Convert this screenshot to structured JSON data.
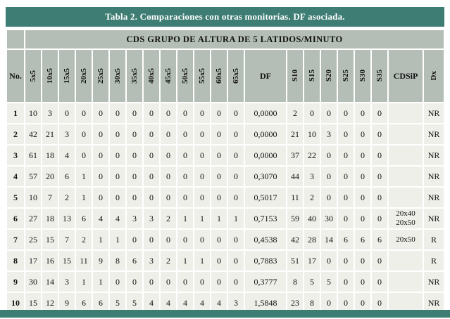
{
  "title": "Tabla 2. Comparaciones con otras monitorías. DF asociada.",
  "table": {
    "group_header": "CDS GRUPO DE ALTURA DE 5 LATIDOS/MINUTO",
    "no_label": "No.",
    "columns": [
      {
        "label": "5x5",
        "rotated": true
      },
      {
        "label": "10x5",
        "rotated": true
      },
      {
        "label": "15x5",
        "rotated": true
      },
      {
        "label": "20x5",
        "rotated": true
      },
      {
        "label": "25x5",
        "rotated": true
      },
      {
        "label": "30x5",
        "rotated": true
      },
      {
        "label": "35x5",
        "rotated": true
      },
      {
        "label": "40x5",
        "rotated": true
      },
      {
        "label": "45x5",
        "rotated": true
      },
      {
        "label": "50x5",
        "rotated": true
      },
      {
        "label": "55x5",
        "rotated": true
      },
      {
        "label": "60x5",
        "rotated": true
      },
      {
        "label": "65x5",
        "rotated": true
      },
      {
        "label": "DF",
        "rotated": false
      },
      {
        "label": "S10",
        "rotated": true
      },
      {
        "label": "S15",
        "rotated": true
      },
      {
        "label": "S20",
        "rotated": true
      },
      {
        "label": "S25",
        "rotated": true
      },
      {
        "label": "S30",
        "rotated": true
      },
      {
        "label": "S35",
        "rotated": true
      },
      {
        "label": "CDSiP",
        "rotated": false
      },
      {
        "label": "Dx",
        "rotated": true
      }
    ],
    "rows": [
      {
        "no": "1",
        "cells": [
          "10",
          "3",
          "0",
          "0",
          "0",
          "0",
          "0",
          "0",
          "0",
          "0",
          "0",
          "0",
          "0",
          "0,0000",
          "2",
          "0",
          "0",
          "0",
          "0",
          "0",
          "",
          "NR"
        ]
      },
      {
        "no": "2",
        "cells": [
          "42",
          "21",
          "3",
          "0",
          "0",
          "0",
          "0",
          "0",
          "0",
          "0",
          "0",
          "0",
          "0",
          "0,0000",
          "21",
          "10",
          "3",
          "0",
          "0",
          "0",
          "",
          "NR"
        ]
      },
      {
        "no": "3",
        "cells": [
          "61",
          "18",
          "4",
          "0",
          "0",
          "0",
          "0",
          "0",
          "0",
          "0",
          "0",
          "0",
          "0",
          "0,0000",
          "37",
          "22",
          "0",
          "0",
          "0",
          "0",
          "",
          "NR"
        ]
      },
      {
        "no": "4",
        "cells": [
          "57",
          "20",
          "6",
          "1",
          "0",
          "0",
          "0",
          "0",
          "0",
          "0",
          "0",
          "0",
          "0",
          "0,3070",
          "44",
          "3",
          "0",
          "0",
          "0",
          "0",
          "",
          "NR"
        ]
      },
      {
        "no": "5",
        "cells": [
          "10",
          "7",
          "2",
          "1",
          "0",
          "0",
          "0",
          "0",
          "0",
          "0",
          "0",
          "0",
          "0",
          "0,5017",
          "11",
          "2",
          "0",
          "0",
          "0",
          "0",
          "",
          "NR"
        ]
      },
      {
        "no": "6",
        "cells": [
          "27",
          "18",
          "13",
          "6",
          "4",
          "4",
          "3",
          "3",
          "2",
          "1",
          "1",
          "1",
          "1",
          "0,7153",
          "59",
          "40",
          "30",
          "0",
          "0",
          "0",
          "20x40 20x50",
          "NR"
        ]
      },
      {
        "no": "7",
        "cells": [
          "25",
          "15",
          "7",
          "2",
          "1",
          "1",
          "0",
          "0",
          "0",
          "0",
          "0",
          "0",
          "0",
          "0,4538",
          "42",
          "28",
          "14",
          "6",
          "6",
          "6",
          "20x50",
          "R"
        ]
      },
      {
        "no": "8",
        "cells": [
          "17",
          "16",
          "15",
          "11",
          "9",
          "8",
          "6",
          "3",
          "2",
          "1",
          "1",
          "0",
          "0",
          "0,7883",
          "51",
          "17",
          "0",
          "0",
          "0",
          "0",
          "",
          "R"
        ]
      },
      {
        "no": "9",
        "cells": [
          "30",
          "14",
          "3",
          "1",
          "1",
          "0",
          "0",
          "0",
          "0",
          "0",
          "0",
          "0",
          "0",
          "0,3777",
          "8",
          "5",
          "5",
          "0",
          "0",
          "0",
          "",
          "NR"
        ]
      },
      {
        "no": "10",
        "cells": [
          "15",
          "12",
          "9",
          "6",
          "6",
          "5",
          "5",
          "4",
          "4",
          "4",
          "4",
          "4",
          "3",
          "1,5848",
          "23",
          "8",
          "0",
          "0",
          "0",
          "0",
          "",
          "NR"
        ]
      }
    ]
  },
  "colors": {
    "teal": "#3e7d73",
    "header_bg": "#b4beb6",
    "cell_bg": "#efefea"
  }
}
